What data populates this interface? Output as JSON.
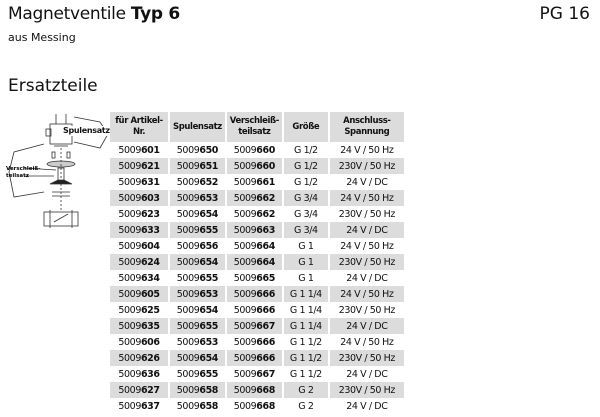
{
  "header": {
    "title_main": "Magnetventile ",
    "title_bold": "Typ 6",
    "subtitle": "aus Messing",
    "pg": "PG 16"
  },
  "section_title": "Ersatzteile",
  "drawing": {
    "label_coil": "Spulensatz",
    "label_wear_1": "Verschleiß-",
    "label_wear_2": "teilsatz"
  },
  "table": {
    "headers": [
      "für Artikel-Nr.",
      "Spulensatz",
      "Verschleiß-\nteilsatz",
      "Größe",
      "Anschluss-\nSpannung"
    ],
    "rows": [
      [
        [
          "5009",
          "601"
        ],
        [
          "5009",
          "650"
        ],
        [
          "5009",
          "660"
        ],
        "G 1/2",
        "24 V / 50 Hz"
      ],
      [
        [
          "5009",
          "621"
        ],
        [
          "5009",
          "651"
        ],
        [
          "5009",
          "660"
        ],
        "G 1/2",
        "230V / 50 Hz"
      ],
      [
        [
          "5009",
          "631"
        ],
        [
          "5009",
          "652"
        ],
        [
          "5009",
          "661"
        ],
        "G 1/2",
        "24 V / DC"
      ],
      [
        [
          "5009",
          "603"
        ],
        [
          "5009",
          "653"
        ],
        [
          "5009",
          "662"
        ],
        "G 3/4",
        "24 V / 50 Hz"
      ],
      [
        [
          "5009",
          "623"
        ],
        [
          "5009",
          "654"
        ],
        [
          "5009",
          "662"
        ],
        "G 3/4",
        "230V / 50 Hz"
      ],
      [
        [
          "5009",
          "633"
        ],
        [
          "5009",
          "655"
        ],
        [
          "5009",
          "663"
        ],
        "G 3/4",
        "24 V / DC"
      ],
      [
        [
          "5009",
          "604"
        ],
        [
          "5009",
          "656"
        ],
        [
          "5009",
          "664"
        ],
        "G 1",
        "24 V / 50 Hz"
      ],
      [
        [
          "5009",
          "624"
        ],
        [
          "5009",
          "654"
        ],
        [
          "5009",
          "664"
        ],
        "G 1",
        "230V / 50 Hz"
      ],
      [
        [
          "5009",
          "634"
        ],
        [
          "5009",
          "655"
        ],
        [
          "5009",
          "665"
        ],
        "G 1",
        "24 V / DC"
      ],
      [
        [
          "5009",
          "605"
        ],
        [
          "5009",
          "653"
        ],
        [
          "5009",
          "666"
        ],
        "G 1 1/4",
        "24 V / 50 Hz"
      ],
      [
        [
          "5009",
          "625"
        ],
        [
          "5009",
          "654"
        ],
        [
          "5009",
          "666"
        ],
        "G 1 1/4",
        "230V / 50 Hz"
      ],
      [
        [
          "5009",
          "635"
        ],
        [
          "5009",
          "655"
        ],
        [
          "5009",
          "667"
        ],
        "G 1 1/4",
        "24 V / DC"
      ],
      [
        [
          "5009",
          "606"
        ],
        [
          "5009",
          "653"
        ],
        [
          "5009",
          "666"
        ],
        "G 1 1/2",
        "24 V / 50 Hz"
      ],
      [
        [
          "5009",
          "626"
        ],
        [
          "5009",
          "654"
        ],
        [
          "5009",
          "666"
        ],
        "G 1 1/2",
        "230V / 50 Hz"
      ],
      [
        [
          "5009",
          "636"
        ],
        [
          "5009",
          "655"
        ],
        [
          "5009",
          "667"
        ],
        "G 1 1/2",
        "24 V / DC"
      ],
      [
        [
          "5009",
          "627"
        ],
        [
          "5009",
          "658"
        ],
        [
          "5009",
          "668"
        ],
        "G 2",
        "230V / 50 Hz"
      ],
      [
        [
          "5009",
          "637"
        ],
        [
          "5009",
          "658"
        ],
        [
          "5009",
          "668"
        ],
        "G 2",
        "24 V / DC"
      ]
    ]
  }
}
